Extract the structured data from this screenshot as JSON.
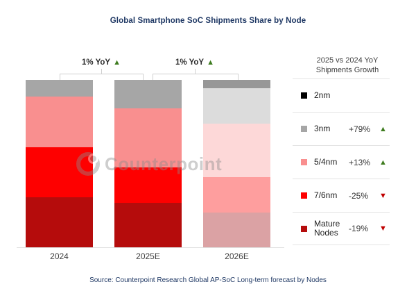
{
  "title": "Global Smartphone SoC Shipments Share by Node",
  "source": "Source: Counterpoint Research Global AP-SoC Long-term forecast by Nodes",
  "watermark": "Counterpoint",
  "annotations": [
    {
      "label": "1% YoY",
      "direction": "up",
      "from": "2024",
      "to": "2025E"
    },
    {
      "label": "1% YoY",
      "direction": "up",
      "from": "2025E",
      "to": "2026E"
    }
  ],
  "legend": {
    "header_line1": "2025 vs 2024 YoY",
    "header_line2": "Shipments  Growth",
    "items": [
      {
        "label": "2nm",
        "color": "#000000",
        "growth": "",
        "direction": ""
      },
      {
        "label": "3nm",
        "color": "#a6a6a6",
        "growth": "+79%",
        "direction": "up"
      },
      {
        "label": "5/4nm",
        "color": "#f98f8f",
        "growth": "+13%",
        "direction": "up"
      },
      {
        "label": "7/6nm",
        "color": "#fe0000",
        "growth": "-25%",
        "direction": "down"
      },
      {
        "label": "Mature Nodes",
        "color": "#b50c0c",
        "growth": "-19%",
        "direction": "down"
      }
    ]
  },
  "chart_data": {
    "type": "bar",
    "stacked": true,
    "unit": "percent share of shipments",
    "title": "Global Smartphone SoC Shipments Share by Node",
    "categories": [
      "2024",
      "2025E",
      "2026E"
    ],
    "faded": [
      false,
      false,
      true
    ],
    "series": [
      {
        "name": "2nm",
        "values": [
          0,
          0,
          5
        ],
        "color": "#000000",
        "faded_color": "#979797"
      },
      {
        "name": "3nm",
        "values": [
          10,
          17,
          21
        ],
        "color": "#a6a6a6",
        "faded_color": "#dcdcdc"
      },
      {
        "name": "5/4nm",
        "values": [
          30,
          35,
          32
        ],
        "color": "#f98f8f",
        "faded_color": "#fdd8d8"
      },
      {
        "name": "7/6nm",
        "values": [
          30,
          21,
          21
        ],
        "color": "#fe0000",
        "faded_color": "#fe9e9e"
      },
      {
        "name": "Mature Nodes",
        "values": [
          30,
          27,
          21
        ],
        "color": "#b50c0c",
        "faded_color": "#dba2a4"
      }
    ],
    "ylim": [
      0,
      100
    ],
    "grid": false,
    "legend_position": "right",
    "legend_header": "2025 vs 2024 YoY Shipments Growth",
    "yoy_growth_2025_vs_2024": {
      "3nm": "+79%",
      "5/4nm": "+13%",
      "7/6nm": "-25%",
      "Mature Nodes": "-19%"
    },
    "total_yoy_annotations": [
      "1% YoY (2024→2025E)",
      "1% YoY (2025E→2026E)"
    ]
  }
}
